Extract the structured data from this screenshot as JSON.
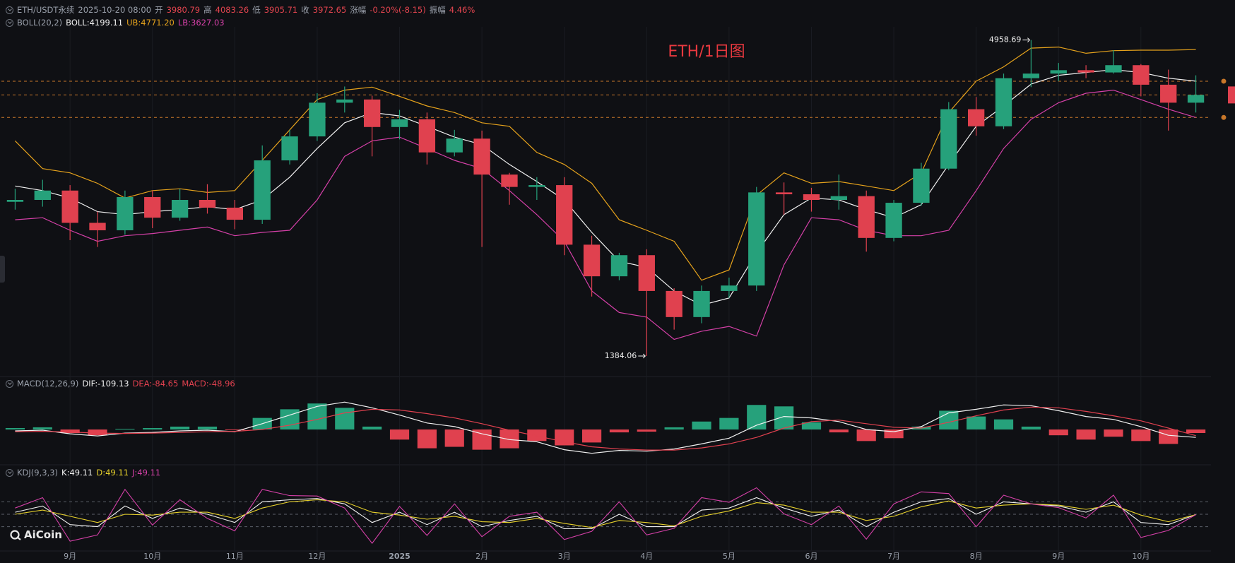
{
  "header": {
    "symbol": "ETH/USDT永续",
    "datetime": "2025-10-20 08:00",
    "open_label": "开",
    "open": 3980.79,
    "high_label": "高",
    "high": 4083.26,
    "low_label": "低",
    "low": 3905.71,
    "close_label": "收",
    "close": 3972.65,
    "change_label": "涨幅",
    "change": "-0.20%(-8.15)",
    "amplitude_label": "振幅",
    "amplitude": "4.46%"
  },
  "logo": "AiCoin",
  "chart_data": [
    {
      "type": "candlestick",
      "title": "ETH/1日图",
      "title_color": "#e8393f",
      "indicator": "BOLL(20,2)",
      "log_scale": true,
      "ylim": [
        1300,
        5200
      ],
      "up_color": "#26a17b",
      "down_color": "#e0414f",
      "price_line_color": "#c8772a",
      "categories": [
        null,
        null,
        "9月",
        null,
        null,
        "10月",
        null,
        null,
        "11月",
        null,
        null,
        "12月",
        null,
        null,
        "2025",
        null,
        null,
        "2月",
        null,
        null,
        "3月",
        null,
        null,
        "4月",
        null,
        null,
        "5月",
        null,
        null,
        "6月",
        null,
        null,
        "7月",
        null,
        null,
        "8月",
        null,
        null,
        "9月",
        null,
        null,
        "10月",
        null,
        null
      ],
      "open": [
        2580,
        2600,
        2700,
        2370,
        2300,
        2630,
        2420,
        2600,
        2520,
        2400,
        3050,
        3360,
        3850,
        3900,
        3490,
        3600,
        3150,
        3330,
        2880,
        2740,
        2760,
        2170,
        1910,
        2080,
        1800,
        1620,
        1800,
        1840,
        2680,
        2660,
        2600,
        2640,
        2230,
        2570,
        2950,
        3750,
        3500,
        4250,
        4330,
        4390,
        4350,
        4480,
        4140,
        3850
      ],
      "high": [
        2720,
        2820,
        2760,
        2480,
        2700,
        2700,
        2720,
        2770,
        2600,
        3240,
        3450,
        4000,
        4110,
        3960,
        3740,
        3700,
        3450,
        3440,
        2900,
        2850,
        2850,
        2250,
        2100,
        2130,
        1820,
        1840,
        1900,
        2740,
        2790,
        2730,
        2880,
        2700,
        2600,
        3020,
        3860,
        3940,
        4330,
        4958.69,
        4520,
        4480,
        4760,
        4500,
        4400,
        4300
      ],
      "low": [
        2500,
        2530,
        2210,
        2150,
        2260,
        2320,
        2390,
        2460,
        2310,
        2360,
        3000,
        3300,
        3700,
        3100,
        3320,
        3000,
        3100,
        2150,
        2550,
        2600,
        2080,
        1760,
        1880,
        1384.06,
        1540,
        1580,
        1750,
        1800,
        2450,
        2480,
        2500,
        2110,
        2200,
        2540,
        2930,
        3370,
        3460,
        4100,
        4200,
        4250,
        4330,
        3950,
        3440,
        3700
      ],
      "close": [
        2600,
        2700,
        2370,
        2300,
        2630,
        2420,
        2600,
        2520,
        2400,
        3050,
        3360,
        3850,
        3900,
        3490,
        3600,
        3150,
        3330,
        2880,
        2740,
        2760,
        2170,
        1910,
        2080,
        1800,
        1620,
        1800,
        1840,
        2680,
        2660,
        2600,
        2640,
        2230,
        2570,
        2950,
        3750,
        3500,
        4250,
        4330,
        4390,
        4350,
        4480,
        4140,
        3850,
        3972.65
      ],
      "max_label": "4958.69",
      "min_label": "1384.06",
      "series": [
        {
          "name": "BOLL:4199.11",
          "color": "#f2f2f2",
          "values": [
            2750,
            2700,
            2620,
            2480,
            2450,
            2480,
            2500,
            2530,
            2500,
            2600,
            2850,
            3200,
            3550,
            3700,
            3650,
            3500,
            3350,
            3250,
            3000,
            2800,
            2600,
            2280,
            2030,
            1980,
            1800,
            1700,
            1750,
            2100,
            2450,
            2620,
            2600,
            2500,
            2420,
            2550,
            3000,
            3500,
            3800,
            4150,
            4300,
            4350,
            4400,
            4350,
            4250,
            4199.11
          ]
        },
        {
          "name": "UB:4771.20",
          "color": "#e5a21c",
          "values": [
            3300,
            2950,
            2900,
            2780,
            2620,
            2700,
            2720,
            2680,
            2700,
            3050,
            3450,
            3900,
            4050,
            4100,
            3950,
            3800,
            3700,
            3550,
            3500,
            3150,
            3000,
            2780,
            2400,
            2300,
            2200,
            1880,
            1960,
            2650,
            2900,
            2780,
            2800,
            2750,
            2700,
            2900,
            3700,
            4200,
            4450,
            4800,
            4820,
            4700,
            4750,
            4760,
            4760,
            4771.2
          ]
        },
        {
          "name": "LB:3627.03",
          "color": "#d540a8",
          "values": [
            2400,
            2420,
            2300,
            2200,
            2250,
            2270,
            2300,
            2330,
            2250,
            2280,
            2300,
            2600,
            3100,
            3300,
            3350,
            3200,
            3050,
            2950,
            2700,
            2450,
            2200,
            1800,
            1650,
            1620,
            1480,
            1530,
            1560,
            1500,
            2000,
            2420,
            2400,
            2300,
            2250,
            2250,
            2300,
            2700,
            3200,
            3600,
            3850,
            4000,
            4050,
            3900,
            3750,
            3627.03
          ]
        }
      ]
    },
    {
      "type": "macd",
      "title": "MACD(12,26,9)",
      "ylim": [
        -450,
        450
      ],
      "series": [
        {
          "name": "DIF:-109.13",
          "color": "#f2f2f2",
          "values": [
            -20,
            -10,
            -60,
            -90,
            -50,
            -40,
            -20,
            -10,
            -30,
            80,
            200,
            320,
            380,
            300,
            200,
            90,
            40,
            -60,
            -140,
            -170,
            -280,
            -330,
            -290,
            -300,
            -270,
            -200,
            -120,
            60,
            180,
            160,
            110,
            0,
            -30,
            40,
            230,
            280,
            340,
            330,
            260,
            180,
            140,
            40,
            -80,
            -109.13
          ]
        },
        {
          "name": "DEA:-84.65",
          "color": "#e0414f",
          "values": [
            -30,
            -25,
            -35,
            -50,
            -55,
            -50,
            -40,
            -30,
            -25,
            0,
            60,
            140,
            230,
            280,
            270,
            220,
            160,
            80,
            -10,
            -90,
            -170,
            -240,
            -270,
            -285,
            -285,
            -255,
            -200,
            -110,
            20,
            110,
            130,
            80,
            30,
            20,
            100,
            190,
            270,
            310,
            300,
            250,
            190,
            120,
            20,
            -84.65
          ]
        },
        {
          "name": "MACD:-48.96",
          "color": "#e0414f",
          "up_color": "#26a17b",
          "down_color": "#e0414f",
          "bars": true,
          "values": [
            20,
            30,
            -50,
            -80,
            10,
            20,
            40,
            40,
            -10,
            160,
            280,
            360,
            300,
            40,
            -140,
            -260,
            -240,
            -280,
            -260,
            -160,
            -220,
            -180,
            -40,
            -30,
            30,
            110,
            160,
            340,
            320,
            100,
            -40,
            -160,
            -120,
            40,
            260,
            180,
            140,
            40,
            -80,
            -140,
            -100,
            -160,
            -200,
            -48.96
          ]
        }
      ]
    },
    {
      "type": "kdj",
      "title": "KDJ(9,3,3)",
      "ylim": [
        -25,
        125
      ],
      "levels": [
        20,
        50,
        80
      ],
      "series": [
        {
          "name": "K:49.11",
          "color": "#f2f2f2",
          "values": [
            55,
            70,
            25,
            20,
            70,
            40,
            65,
            50,
            30,
            80,
            85,
            88,
            75,
            30,
            55,
            25,
            55,
            20,
            35,
            45,
            15,
            15,
            50,
            20,
            20,
            60,
            65,
            90,
            65,
            45,
            60,
            20,
            55,
            80,
            88,
            50,
            80,
            75,
            70,
            55,
            80,
            30,
            25,
            49.11
          ]
        },
        {
          "name": "D:49.11",
          "color": "#e8d22c",
          "values": [
            50,
            60,
            45,
            30,
            50,
            48,
            55,
            55,
            40,
            65,
            80,
            85,
            80,
            55,
            48,
            38,
            45,
            32,
            30,
            40,
            28,
            18,
            35,
            30,
            22,
            45,
            58,
            78,
            72,
            55,
            55,
            35,
            45,
            68,
            82,
            65,
            72,
            75,
            72,
            62,
            72,
            48,
            32,
            49.11
          ]
        },
        {
          "name": "J:49.11",
          "color": "#d540a8",
          "values": [
            65,
            90,
            -15,
            0,
            110,
            24,
            85,
            40,
            10,
            110,
            95,
            94,
            65,
            -20,
            69,
            -1,
            75,
            -4,
            45,
            55,
            -11,
            9,
            80,
            0,
            16,
            90,
            79,
            114,
            51,
            25,
            70,
            -10,
            75,
            104,
            100,
            20,
            96,
            75,
            66,
            41,
            96,
            -6,
            11,
            49.11
          ]
        }
      ]
    }
  ]
}
